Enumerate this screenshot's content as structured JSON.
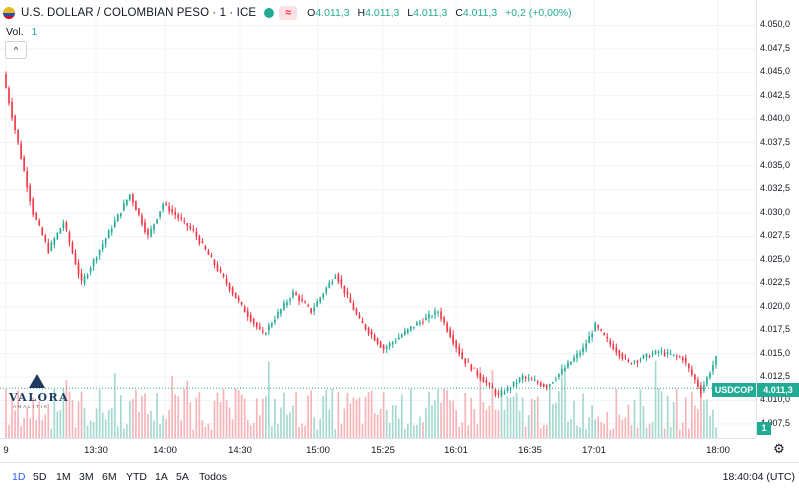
{
  "header": {
    "symbol_title": "U.S. DOLLAR / COLOMBIAN PESO · 1 · ICE",
    "badge": "≈",
    "ohlc": [
      {
        "label": "O",
        "value": "4.011,3"
      },
      {
        "label": "H",
        "value": "4.011,3"
      },
      {
        "label": "L",
        "value": "4.011,3"
      },
      {
        "label": "C",
        "value": "4.011,3"
      }
    ],
    "change": "+0,2 (+0,00%)",
    "icons": {
      "flag": "usd-cop-flag-icon",
      "status": "market-status-dot-icon"
    }
  },
  "volume_legend": {
    "label": "Vol.",
    "value": "1"
  },
  "collapse_glyph": "^",
  "logo": {
    "word": "VALORA",
    "sub": "ANALITIK"
  },
  "price_axis": {
    "ticks": [
      "4.050,0",
      "4.047,5",
      "4.045,0",
      "4.042,5",
      "4.040,0",
      "4.037,5",
      "4.035,0",
      "4.032,5",
      "4.030,0",
      "4.027,5",
      "4.025,0",
      "4.022,5",
      "4.020,0",
      "4.017,5",
      "4.015,0",
      "4.012,5",
      "4.010,0",
      "4.007,5"
    ],
    "current_symbol": "USDCOP",
    "current_price": "4.011,3",
    "volume_tag": "1"
  },
  "time_axis": {
    "labels": [
      "9",
      "13:30",
      "14:00",
      "14:30",
      "15:00",
      "15:25",
      "16:01",
      "16:35",
      "17:01",
      "18:00"
    ]
  },
  "range_bar": {
    "buttons": [
      "1D",
      "5D",
      "1M",
      "3M",
      "6M",
      "YTD",
      "1A",
      "5A",
      "Todos"
    ],
    "active": "1D",
    "clock": "18:40:04 (UTC)"
  },
  "colors": {
    "up": "#22ab94",
    "down": "#f23645",
    "vol_up": "#a5d9cf",
    "vol_down": "#f7b4b8",
    "grid": "#f0f3fa"
  },
  "chart_data": {
    "type": "candlestick",
    "ylim": [
      4006.0,
      4051.0
    ],
    "current_price": 4011.3,
    "x_ticks": [
      "9",
      "13:30",
      "14:00",
      "14:30",
      "15:00",
      "15:25",
      "16:01",
      "16:35",
      "17:01",
      "18:00"
    ],
    "segments": [
      {
        "start": 4044.8,
        "end": 4030.0,
        "n": 10
      },
      {
        "start": 4030.0,
        "end": 4026.0,
        "n": 5
      },
      {
        "start": 4026.0,
        "end": 4029.0,
        "n": 5
      },
      {
        "start": 4029.0,
        "end": 4022.5,
        "n": 6
      },
      {
        "start": 4022.5,
        "end": 4028.5,
        "n": 10
      },
      {
        "start": 4028.5,
        "end": 4032.0,
        "n": 6
      },
      {
        "start": 4032.0,
        "end": 4027.5,
        "n": 6
      },
      {
        "start": 4027.5,
        "end": 4031.0,
        "n": 5
      },
      {
        "start": 4031.0,
        "end": 4028.0,
        "n": 10
      },
      {
        "start": 4028.0,
        "end": 4024.0,
        "n": 8
      },
      {
        "start": 4024.0,
        "end": 4020.0,
        "n": 8
      },
      {
        "start": 4020.0,
        "end": 4017.0,
        "n": 7
      },
      {
        "start": 4017.0,
        "end": 4021.5,
        "n": 10
      },
      {
        "start": 4021.5,
        "end": 4019.5,
        "n": 6
      },
      {
        "start": 4019.5,
        "end": 4023.5,
        "n": 8
      },
      {
        "start": 4023.5,
        "end": 4018.5,
        "n": 8
      },
      {
        "start": 4018.5,
        "end": 4015.5,
        "n": 8
      },
      {
        "start": 4015.5,
        "end": 4018.0,
        "n": 10
      },
      {
        "start": 4018.0,
        "end": 4019.5,
        "n": 8
      },
      {
        "start": 4019.5,
        "end": 4014.5,
        "n": 8
      },
      {
        "start": 4014.5,
        "end": 4012.5,
        "n": 6
      },
      {
        "start": 4012.5,
        "end": 4010.5,
        "n": 6
      },
      {
        "start": 4010.5,
        "end": 4012.5,
        "n": 8
      },
      {
        "start": 4012.5,
        "end": 4011.5,
        "n": 8
      },
      {
        "start": 4011.5,
        "end": 4013.5,
        "n": 6
      },
      {
        "start": 4013.5,
        "end": 4015.5,
        "n": 6
      },
      {
        "start": 4015.5,
        "end": 4018.0,
        "n": 4
      },
      {
        "start": 4018.0,
        "end": 4016.0,
        "n": 5
      },
      {
        "start": 4016.0,
        "end": 4014.0,
        "n": 6
      },
      {
        "start": 4014.0,
        "end": 4015.2,
        "n": 10
      },
      {
        "start": 4015.2,
        "end": 4014.5,
        "n": 8
      },
      {
        "start": 4014.5,
        "end": 4011.0,
        "n": 6
      },
      {
        "start": 4011.0,
        "end": 4014.5,
        "n": 5
      }
    ]
  }
}
